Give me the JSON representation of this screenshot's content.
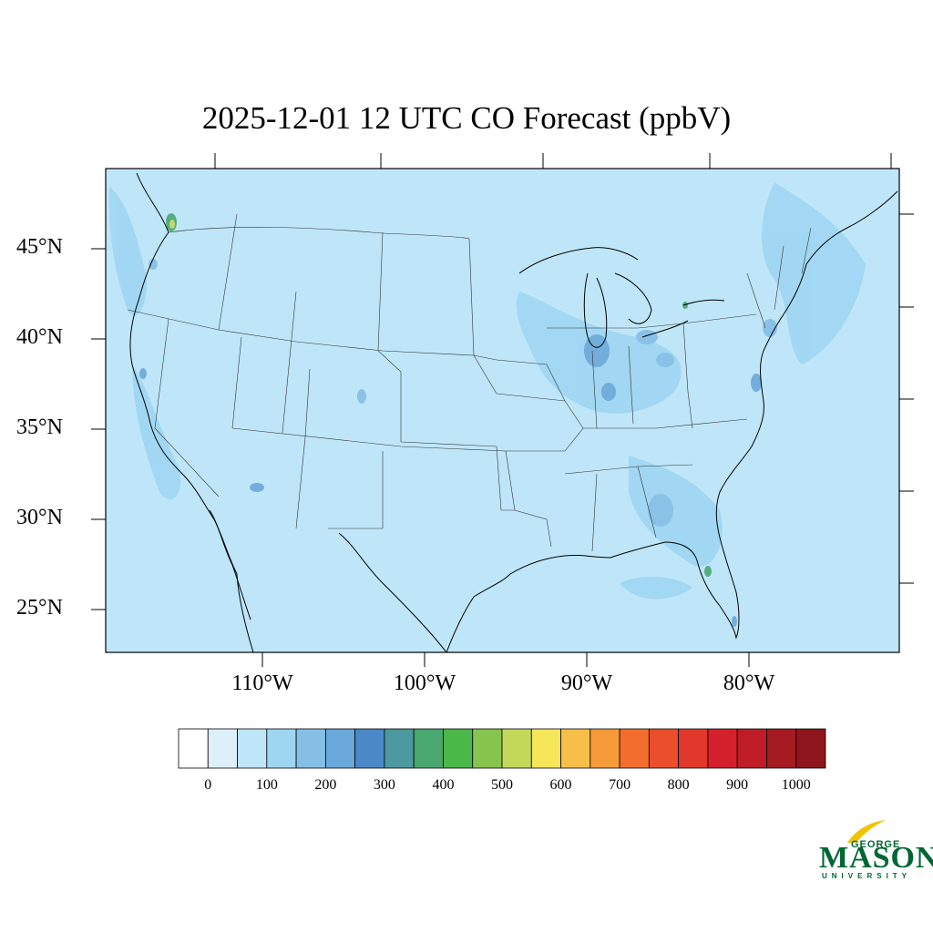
{
  "title": "2025-12-01 12 UTC CO Forecast (ppbV)",
  "lat_labels": [
    "45°N",
    "40°N",
    "35°N",
    "30°N",
    "25°N"
  ],
  "lon_labels": [
    "110°W",
    "100°W",
    "90°W",
    "80°W"
  ],
  "colorbar": {
    "colors": [
      "#ffffff",
      "#ddf0fa",
      "#bfe6f8",
      "#9ed6f2",
      "#85bfe6",
      "#6aa7da",
      "#4a88c8",
      "#4c9aa0",
      "#48a870",
      "#4ab848",
      "#86c44e",
      "#c4d85a",
      "#f6e65a",
      "#f7bf4a",
      "#f69a3a",
      "#f36e2e",
      "#ea4e2a",
      "#e0382a",
      "#d4202c",
      "#be1c26",
      "#a61a22",
      "#8e161c"
    ],
    "labels": [
      "0",
      "100",
      "200",
      "300",
      "400",
      "500",
      "600",
      "700",
      "800",
      "900",
      "1000"
    ]
  },
  "logo": {
    "line1": "GEORGE",
    "line2": "MASON",
    "line3": "UNIVERSITY"
  },
  "colors": {
    "background_field": "#bfe6f8",
    "logo_green": "#006633",
    "logo_gold": "#f2c300"
  }
}
